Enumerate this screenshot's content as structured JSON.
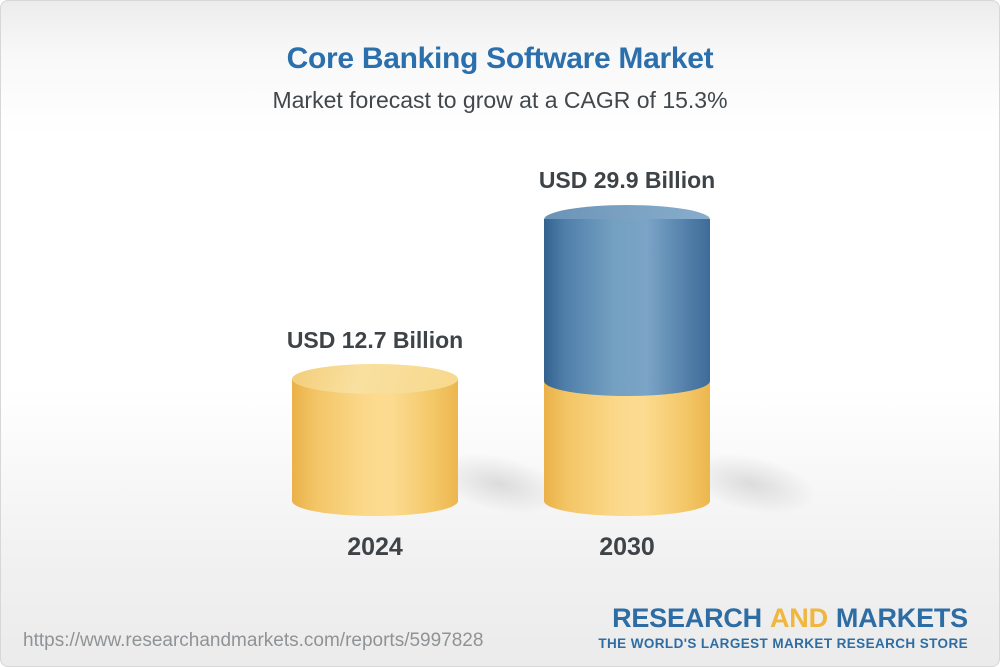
{
  "header": {
    "title": "Core Banking Software Market",
    "subtitle": "Market forecast to grow at a CAGR of 15.3%"
  },
  "chart_data": {
    "type": "bar",
    "variant": "3d-cylinder-infographic",
    "categories": [
      "2024",
      "2030"
    ],
    "values": [
      12.7,
      29.9
    ],
    "unit": "USD Billion",
    "value_labels": [
      "USD 12.7 Billion",
      "USD 29.9 Billion"
    ],
    "cagr_pct": 15.3,
    "title": "Core Banking Software Market",
    "subtitle": "Market forecast to grow at a CAGR of 15.3%",
    "axes": "none (value labels above bars, year labels below bars)",
    "colors": {
      "base_segment_yellow": "#F7CE73",
      "growth_segment_blue": "#5F8BB1",
      "title_blue": "#2B70AC",
      "label_gray": "#3E4347"
    },
    "notes": "2030 bar is a stacked cylinder: yellow base segment (equal to the 2024 value) with a blue growth segment on top"
  },
  "footer": {
    "url": "https://www.researchandmarkets.com/reports/5997828",
    "logo": {
      "word1": "RESEARCH",
      "word2": "AND",
      "word3": "MARKETS",
      "tagline": "THE WORLD'S LARGEST MARKET RESEARCH STORE",
      "brand_blue": "#2E6DA4",
      "brand_gold": "#F0B63E"
    }
  }
}
